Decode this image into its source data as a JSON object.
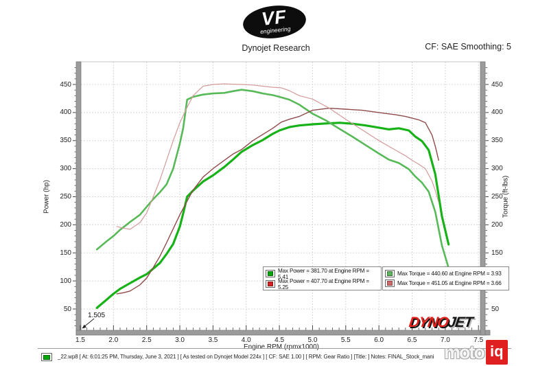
{
  "header": {
    "logo": {
      "text": "VF",
      "sub": "engineering"
    },
    "title": "Dynojet Research",
    "smoothing": "CF: SAE Smoothing: 5"
  },
  "chart_data": {
    "type": "line",
    "x_axis": {
      "label": "Engine RPM (rpmx1000)",
      "min": 1.5,
      "max": 7.53,
      "major_ticks": [
        1.5,
        2.0,
        2.5,
        3.0,
        3.5,
        4.0,
        4.5,
        5.0,
        5.5,
        6.0,
        6.5,
        7.0,
        7.5
      ],
      "minor_step": 0.1
    },
    "y_left_axis": {
      "label": "Power (hp)",
      "min": 12,
      "max": 490,
      "major_ticks": [
        50,
        100,
        150,
        200,
        250,
        300,
        350,
        400,
        450
      ],
      "minor_step": 10
    },
    "y_right_axis": {
      "label": "Torque (ft-lbs)",
      "major_ticks": [
        50,
        100,
        150,
        200,
        250,
        300,
        350,
        400,
        450
      ]
    },
    "annotation": {
      "text": "1.505",
      "x": 1.505
    },
    "grid": true,
    "series": [
      {
        "name": "power-run1-green",
        "color": "#17b217",
        "width": 3.2,
        "points": [
          [
            1.75,
            52
          ],
          [
            1.9,
            67
          ],
          [
            2.0,
            77
          ],
          [
            2.1,
            86
          ],
          [
            2.25,
            96
          ],
          [
            2.4,
            106
          ],
          [
            2.5,
            112
          ],
          [
            2.6,
            122
          ],
          [
            2.7,
            132
          ],
          [
            2.8,
            148
          ],
          [
            2.9,
            166
          ],
          [
            3.0,
            197
          ],
          [
            3.05,
            220
          ],
          [
            3.11,
            250
          ],
          [
            3.2,
            261
          ],
          [
            3.35,
            277
          ],
          [
            3.5,
            288
          ],
          [
            3.67,
            303
          ],
          [
            3.8,
            316
          ],
          [
            3.93,
            330
          ],
          [
            4.1,
            342
          ],
          [
            4.25,
            351
          ],
          [
            4.4,
            362
          ],
          [
            4.5,
            368
          ],
          [
            4.65,
            374
          ],
          [
            4.8,
            377
          ],
          [
            5.0,
            379
          ],
          [
            5.2,
            380.5
          ],
          [
            5.41,
            381.7
          ],
          [
            5.6,
            380
          ],
          [
            5.8,
            377
          ],
          [
            6.0,
            373
          ],
          [
            6.15,
            370
          ],
          [
            6.3,
            372
          ],
          [
            6.45,
            368
          ],
          [
            6.55,
            357
          ],
          [
            6.65,
            349
          ],
          [
            6.75,
            333
          ],
          [
            6.85,
            290
          ],
          [
            6.95,
            215
          ],
          [
            7.0,
            190
          ],
          [
            7.05,
            165
          ]
        ]
      },
      {
        "name": "torque-run1-green",
        "color": "#57b957",
        "width": 2.6,
        "points": [
          [
            1.75,
            156
          ],
          [
            1.9,
            171
          ],
          [
            2.0,
            180
          ],
          [
            2.1,
            191
          ],
          [
            2.25,
            205
          ],
          [
            2.4,
            218
          ],
          [
            2.5,
            232
          ],
          [
            2.6,
            246
          ],
          [
            2.7,
            258
          ],
          [
            2.8,
            272
          ],
          [
            2.9,
            300
          ],
          [
            3.0,
            345
          ],
          [
            3.05,
            372
          ],
          [
            3.11,
            423
          ],
          [
            3.2,
            428
          ],
          [
            3.35,
            432
          ],
          [
            3.5,
            434
          ],
          [
            3.67,
            435
          ],
          [
            3.8,
            438
          ],
          [
            3.93,
            440.6
          ],
          [
            4.1,
            438
          ],
          [
            4.25,
            434
          ],
          [
            4.4,
            431
          ],
          [
            4.5,
            428
          ],
          [
            4.65,
            423
          ],
          [
            4.8,
            414
          ],
          [
            5.0,
            398
          ],
          [
            5.2,
            386
          ],
          [
            5.41,
            370.6
          ],
          [
            5.6,
            357
          ],
          [
            5.8,
            342
          ],
          [
            6.0,
            327
          ],
          [
            6.15,
            316
          ],
          [
            6.3,
            310
          ],
          [
            6.45,
            299
          ],
          [
            6.55,
            286
          ],
          [
            6.65,
            275
          ],
          [
            6.75,
            259
          ],
          [
            6.85,
            223
          ],
          [
            6.95,
            163
          ],
          [
            7.0,
            143
          ],
          [
            7.05,
            123
          ]
        ]
      },
      {
        "name": "power-run2-red",
        "color": "#8f4a4a",
        "width": 1.4,
        "points": [
          [
            2.05,
            77
          ],
          [
            2.15,
            79
          ],
          [
            2.25,
            82
          ],
          [
            2.4,
            93
          ],
          [
            2.5,
            105
          ],
          [
            2.6,
            124
          ],
          [
            2.7,
            144
          ],
          [
            2.8,
            168
          ],
          [
            2.9,
            193
          ],
          [
            3.0,
            218
          ],
          [
            3.1,
            240
          ],
          [
            3.2,
            262
          ],
          [
            3.35,
            285
          ],
          [
            3.5,
            300
          ],
          [
            3.66,
            314
          ],
          [
            3.8,
            326
          ],
          [
            3.93,
            334
          ],
          [
            4.1,
            350
          ],
          [
            4.25,
            361
          ],
          [
            4.4,
            372
          ],
          [
            4.53,
            383
          ],
          [
            4.65,
            388
          ],
          [
            4.8,
            393
          ],
          [
            5.0,
            404
          ],
          [
            5.25,
            407.7
          ],
          [
            5.5,
            406
          ],
          [
            5.75,
            404
          ],
          [
            6.0,
            400
          ],
          [
            6.25,
            396
          ],
          [
            6.4,
            393
          ],
          [
            6.5,
            390
          ],
          [
            6.6,
            387
          ],
          [
            6.7,
            382
          ],
          [
            6.8,
            360
          ],
          [
            6.85,
            340
          ],
          [
            6.9,
            315
          ]
        ]
      },
      {
        "name": "torque-run2-red",
        "color": "#d49a9c",
        "width": 1.2,
        "points": [
          [
            2.05,
            197
          ],
          [
            2.15,
            194
          ],
          [
            2.25,
            192
          ],
          [
            2.4,
            204
          ],
          [
            2.5,
            221
          ],
          [
            2.6,
            250
          ],
          [
            2.7,
            280
          ],
          [
            2.8,
            315
          ],
          [
            2.9,
            350
          ],
          [
            3.0,
            382
          ],
          [
            3.1,
            407
          ],
          [
            3.2,
            430
          ],
          [
            3.35,
            447
          ],
          [
            3.5,
            450
          ],
          [
            3.66,
            451.05
          ],
          [
            3.8,
            450.5
          ],
          [
            3.93,
            450
          ],
          [
            4.1,
            449
          ],
          [
            4.25,
            447
          ],
          [
            4.4,
            445
          ],
          [
            4.53,
            444
          ],
          [
            4.65,
            439
          ],
          [
            4.8,
            430
          ],
          [
            5.0,
            424
          ],
          [
            5.25,
            407.9
          ],
          [
            5.5,
            388
          ],
          [
            5.75,
            369
          ],
          [
            6.0,
            350
          ],
          [
            6.25,
            333
          ],
          [
            6.4,
            323
          ],
          [
            6.5,
            315
          ],
          [
            6.6,
            308
          ],
          [
            6.7,
            300
          ],
          [
            6.8,
            278
          ],
          [
            6.85,
            261
          ],
          [
            6.9,
            240
          ]
        ]
      }
    ],
    "legend": {
      "power_box": [
        {
          "marker_color": "#0aa50a",
          "label": "Max Power = 381.70 at Engine RPM = 5.41"
        },
        {
          "marker_color": "#d42222",
          "label": "Max Power = 407.70 at Engine RPM = 5.25"
        }
      ],
      "torque_box": [
        {
          "marker_color": "#5cb55c",
          "label": "Max Torque = 440.60 at Engine RPM = 3.93"
        },
        {
          "marker_color": "#d06a6a",
          "label": "Max Torque = 451.05 at Engine RPM = 3.66"
        }
      ]
    }
  },
  "footer": {
    "marker_color": "#0aa50a",
    "info": "_22.wp8 [ At: 6:01:25 PM, Thursday, June 3, 2021 ] [ As tested on Dynojet Model 224x ] [ CF: SAE 1.00 ] [ RPM: Gear Ratio ] [Title: ] Notes: FINAL_Stock_mani",
    "dynojet": {
      "part1": "DYNO",
      "part2": "JET"
    },
    "motoiq": {
      "part1": "moto",
      "part2": "iq"
    }
  }
}
